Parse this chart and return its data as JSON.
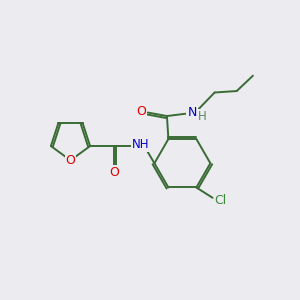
{
  "background_color": "#ebebf0",
  "bond_color": "#3a6b35",
  "atom_colors": {
    "O": "#e00000",
    "N": "#0000cc",
    "Cl": "#3a8a3a",
    "H": "#5a8a5a"
  },
  "figsize": [
    3.0,
    3.0
  ],
  "dpi": 100,
  "line_width": 1.4
}
